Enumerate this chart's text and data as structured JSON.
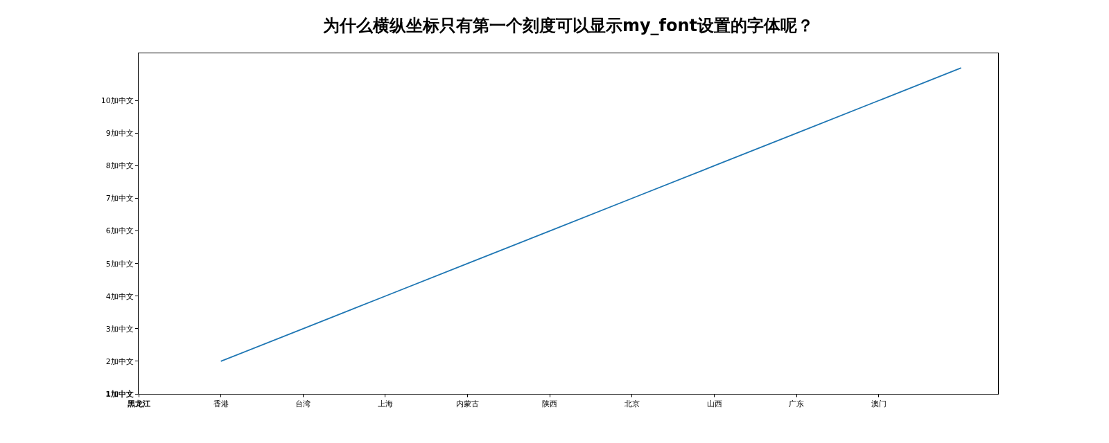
{
  "chart_data": {
    "type": "line",
    "title": "为什么横纵坐标只有第一个刻度可以显示my_font设置的字体呢？",
    "categories": [
      "黑龙江",
      "香港",
      "台湾",
      "上海",
      "内蒙古",
      "陕西",
      "北京",
      "山西",
      "广东",
      "澳门",
      null
    ],
    "series": [
      {
        "color": "#1f77b4",
        "values": [
          null,
          2,
          3,
          4,
          5,
          6,
          7,
          8,
          9,
          10,
          11
        ]
      }
    ],
    "ylim": [
      1,
      11.45
    ],
    "yticks": [
      {
        "value": 1,
        "label": "1加中文"
      },
      {
        "value": 2,
        "label": "2加中文"
      },
      {
        "value": 3,
        "label": "3加中文"
      },
      {
        "value": 4,
        "label": "4加中文"
      },
      {
        "value": 5,
        "label": "5加中文"
      },
      {
        "value": 6,
        "label": "6加中文"
      },
      {
        "value": 7,
        "label": "7加中文"
      },
      {
        "value": 8,
        "label": "8加中文"
      },
      {
        "value": 9,
        "label": "9加中文"
      },
      {
        "value": 10,
        "label": "10加中文"
      }
    ],
    "marker": "none",
    "line_style": "solid"
  }
}
